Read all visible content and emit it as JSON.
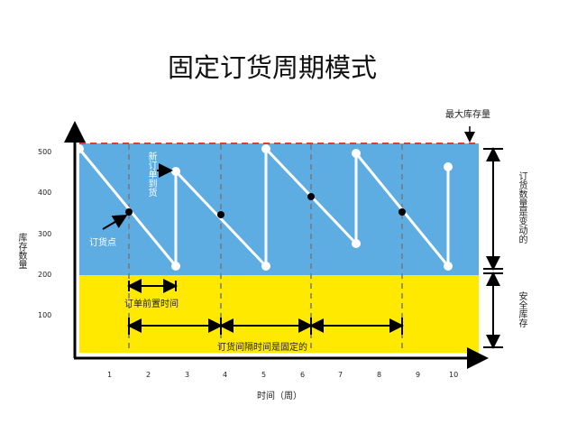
{
  "title": "固定订货周期模式",
  "y_axis": {
    "label": "库存数量",
    "ticks": [
      "500",
      "400",
      "300",
      "200",
      "100"
    ]
  },
  "x_axis": {
    "label": "时间（周）",
    "ticks": [
      "1",
      "2",
      "3",
      "4",
      "5",
      "6",
      "7",
      "8",
      "9",
      "10"
    ]
  },
  "annotations": {
    "max_inventory": "最大库存量",
    "new_order_arrives": "新订单到货",
    "reorder_point": "订货点",
    "lead_time": "订单前置时间",
    "fixed_interval": "订货间隔时间是固定的",
    "variable_quantity": "订货数量是变动的",
    "safety_stock": "安全库存"
  },
  "colors": {
    "cycle_zone": "#5DADE2",
    "safety_zone": "#FFE900",
    "max_line": "#E53935",
    "inventory_line": "#FFFFFF",
    "reorder_marker": "#000000"
  }
}
